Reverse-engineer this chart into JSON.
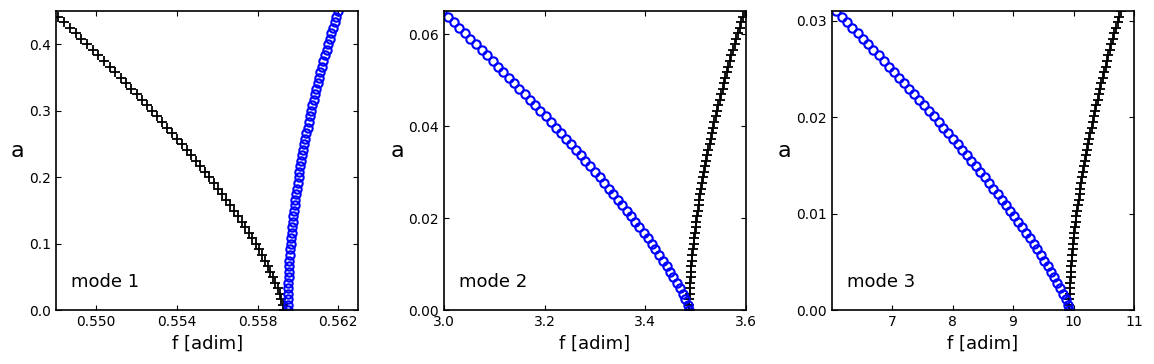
{
  "modes": [
    {
      "label": "mode 1",
      "xlabel": "f [adim]",
      "ylabel": "a",
      "xlim": [
        0.548,
        0.563
      ],
      "ylim": [
        0,
        0.45
      ],
      "xticks": [
        0.55,
        0.554,
        0.558,
        0.562
      ],
      "yticks": [
        0,
        0.1,
        0.2,
        0.3,
        0.4
      ],
      "f0_plus": 0.5593,
      "f0_circle": 0.5595,
      "plus_scale": 0.0115,
      "plus_power": 1.4,
      "circle_scale": 0.0025,
      "circle_power": 1.9,
      "plus_dir": -1,
      "circle_dir": 1
    },
    {
      "label": "mode 2",
      "xlabel": "f [adim]",
      "ylabel": "a",
      "xlim": [
        3.0,
        3.6
      ],
      "ylim": [
        0,
        0.065
      ],
      "xticks": [
        3.0,
        3.2,
        3.4,
        3.6
      ],
      "yticks": [
        0,
        0.02,
        0.04,
        0.06
      ],
      "f0_plus": 3.487,
      "f0_circle": 3.487,
      "plus_scale": 0.11,
      "plus_power": 1.7,
      "circle_scale": 0.49,
      "circle_power": 1.25,
      "plus_dir": 1,
      "circle_dir": -1
    },
    {
      "label": "mode 3",
      "xlabel": "f [adim]",
      "ylabel": "a",
      "xlim": [
        6.0,
        11.0
      ],
      "ylim": [
        0,
        0.031
      ],
      "xticks": [
        7,
        8,
        9,
        10,
        11
      ],
      "yticks": [
        0,
        0.01,
        0.02,
        0.03
      ],
      "f0_plus": 9.93,
      "f0_circle": 9.93,
      "plus_scale": 0.85,
      "plus_power": 1.7,
      "circle_scale": 3.85,
      "circle_power": 1.25,
      "plus_dir": 1,
      "circle_dir": -1
    }
  ],
  "plus_color": "black",
  "circle_color": "blue",
  "background_color": "white",
  "label_fontsize": 13,
  "tick_fontsize": 10,
  "mode_label_fontsize": 13,
  "n_points": 55,
  "figsize": [
    11.54,
    3.64
  ],
  "dpi": 100
}
